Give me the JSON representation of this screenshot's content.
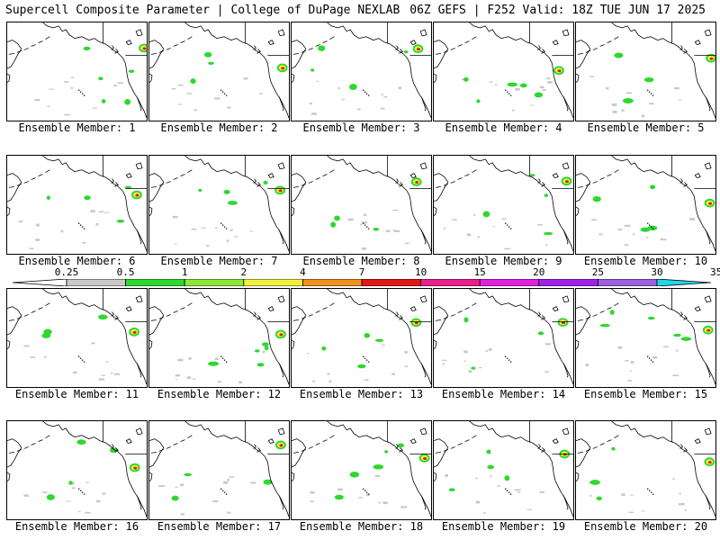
{
  "header": {
    "left": "Supercell Composite Parameter | College of DuPage NEXLAB",
    "right": "06Z GEFS | F252 Valid: 18Z TUE JUN 17 2025"
  },
  "colorbar": {
    "labels": [
      "0.25",
      "0.5",
      "1",
      "2",
      "4",
      "7",
      "10",
      "15",
      "20",
      "25",
      "30",
      "35"
    ],
    "colors": [
      "#ffffff",
      "#c8c8c8",
      "#2ed82e",
      "#8ee83c",
      "#f0f040",
      "#f09020",
      "#e01818",
      "#e8208a",
      "#e020e0",
      "#a020e8",
      "#9a60e0",
      "#20d8e8"
    ]
  },
  "panels": [
    {
      "label": "Ensemble Member: 1"
    },
    {
      "label": "Ensemble Member: 2"
    },
    {
      "label": "Ensemble Member: 3"
    },
    {
      "label": "Ensemble Member: 4"
    },
    {
      "label": "Ensemble Member: 5"
    },
    {
      "label": "Ensemble Member: 6"
    },
    {
      "label": "Ensemble Member: 7"
    },
    {
      "label": "Ensemble Member: 8"
    },
    {
      "label": "Ensemble Member: 9"
    },
    {
      "label": "Ensemble Member: 10"
    },
    {
      "label": "Ensemble Member: 11"
    },
    {
      "label": "Ensemble Member: 12"
    },
    {
      "label": "Ensemble Member: 13"
    },
    {
      "label": "Ensemble Member: 14"
    },
    {
      "label": "Ensemble Member: 15"
    },
    {
      "label": "Ensemble Member: 16"
    },
    {
      "label": "Ensemble Member: 17"
    },
    {
      "label": "Ensemble Member: 18"
    },
    {
      "label": "Ensemble Member: 19"
    },
    {
      "label": "Ensemble Member: 20"
    }
  ]
}
